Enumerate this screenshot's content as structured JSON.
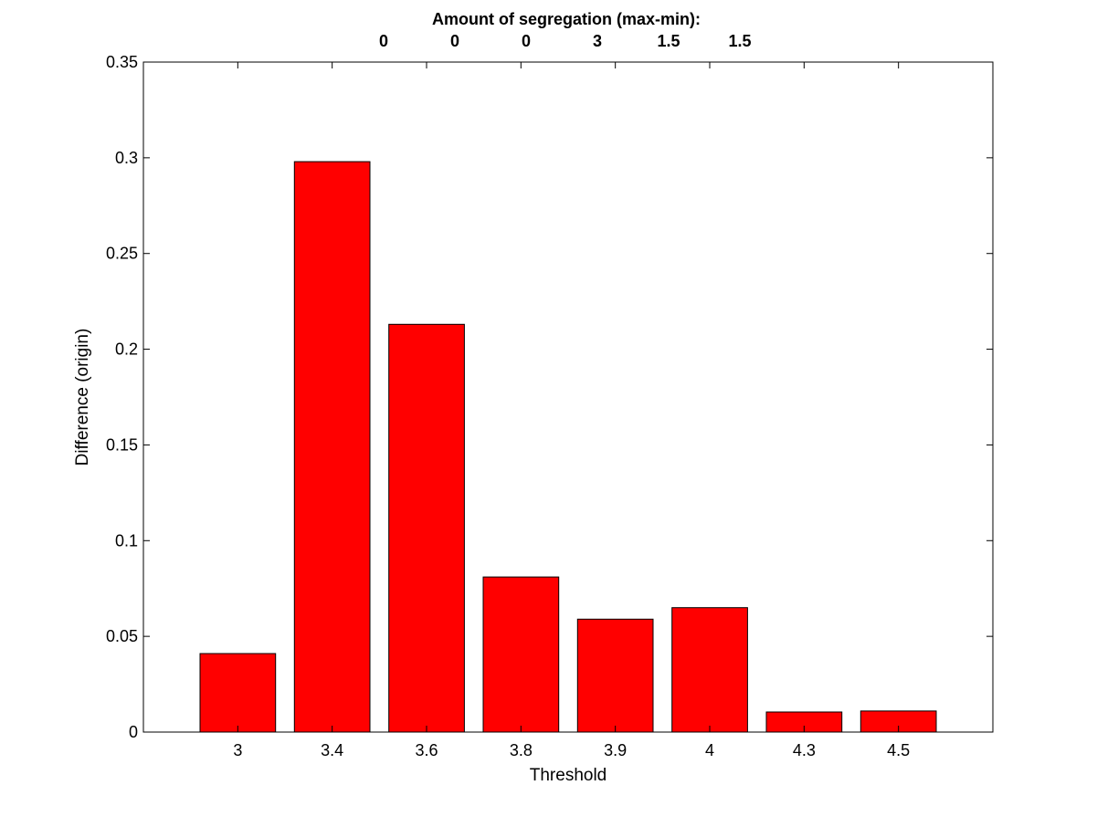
{
  "chart_data": {
    "type": "bar",
    "categories": [
      "3",
      "3.4",
      "3.6",
      "3.8",
      "3.9",
      "4",
      "4.3",
      "4.5"
    ],
    "values": [
      0.041,
      0.298,
      0.213,
      0.081,
      0.059,
      0.065,
      0.0105,
      0.011
    ],
    "xlabel": "Threshold",
    "ylabel": "Difference (origin)",
    "ylim": [
      0,
      0.35
    ],
    "yticks": [
      "0",
      "0.05",
      "0.1",
      "0.15",
      "0.2",
      "0.25",
      "0.3",
      "0.35"
    ],
    "bar_color": "#ff0000",
    "grid": false,
    "top_annotation": {
      "title": "Amount of segregation (max-min):",
      "values": [
        "0",
        "0",
        "0",
        "3",
        "1.5",
        "1.5"
      ]
    }
  }
}
